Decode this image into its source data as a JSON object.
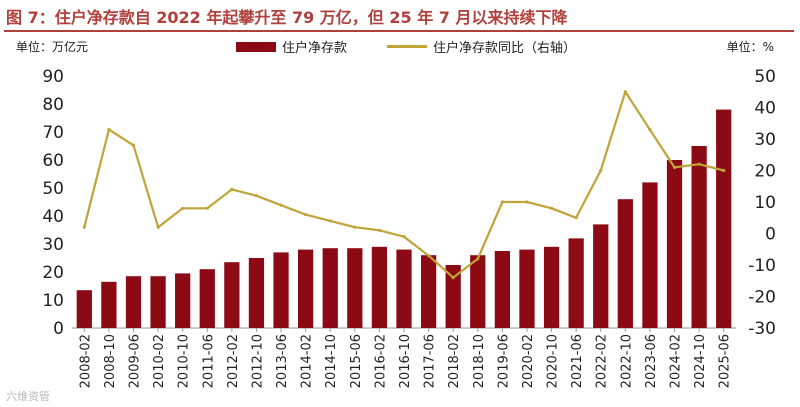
{
  "title": "图 7：住户净存款自 2022 年起攀升至 79 万亿，但 25 年 7 月以来持续下降",
  "unit_left": "单位：万亿元",
  "unit_right": "单位：%",
  "watermark": "六维资管",
  "colors": {
    "bar": "#8b0a14",
    "line": "#c0a438",
    "title": "#b0403c"
  },
  "chart_data": {
    "type": "bar",
    "categories": [
      "2008-02",
      "2008-10",
      "2009-06",
      "2010-02",
      "2010-10",
      "2011-06",
      "2012-02",
      "2012-10",
      "2013-06",
      "2014-02",
      "2014-10",
      "2015-06",
      "2016-02",
      "2016-10",
      "2017-06",
      "2018-02",
      "2018-10",
      "2019-06",
      "2020-02",
      "2020-10",
      "2021-06",
      "2022-02",
      "2022-10",
      "2023-06",
      "2024-02",
      "2024-10",
      "2025-06"
    ],
    "series": [
      {
        "name": "住户净存款",
        "axis": "left",
        "type": "bar",
        "values": [
          13.5,
          16.5,
          18.5,
          18.5,
          19.5,
          21.0,
          23.5,
          25.0,
          27.0,
          28.0,
          28.5,
          28.5,
          29.0,
          28.0,
          26.0,
          22.5,
          26.0,
          27.5,
          28.0,
          29.0,
          32.0,
          37.0,
          46.0,
          52.0,
          60.0,
          65.0,
          78.0
        ]
      },
      {
        "name": "住户净存款同比（右轴）",
        "axis": "right",
        "type": "line",
        "values": [
          2,
          33,
          28,
          2,
          8,
          8,
          14,
          12,
          9,
          6,
          4,
          2,
          1,
          -1,
          -7,
          -14,
          -8,
          10,
          10,
          8,
          5,
          20,
          45,
          33,
          21,
          22,
          20
        ]
      }
    ],
    "ylim_left": [
      0,
      90
    ],
    "ylim_right": [
      -30,
      50
    ],
    "yticks_left": [
      0,
      10,
      20,
      30,
      40,
      50,
      60,
      70,
      80,
      90
    ],
    "yticks_right": [
      -30,
      -20,
      -10,
      0,
      10,
      20,
      30,
      40,
      50
    ],
    "legend_position": "top",
    "grid": false
  }
}
